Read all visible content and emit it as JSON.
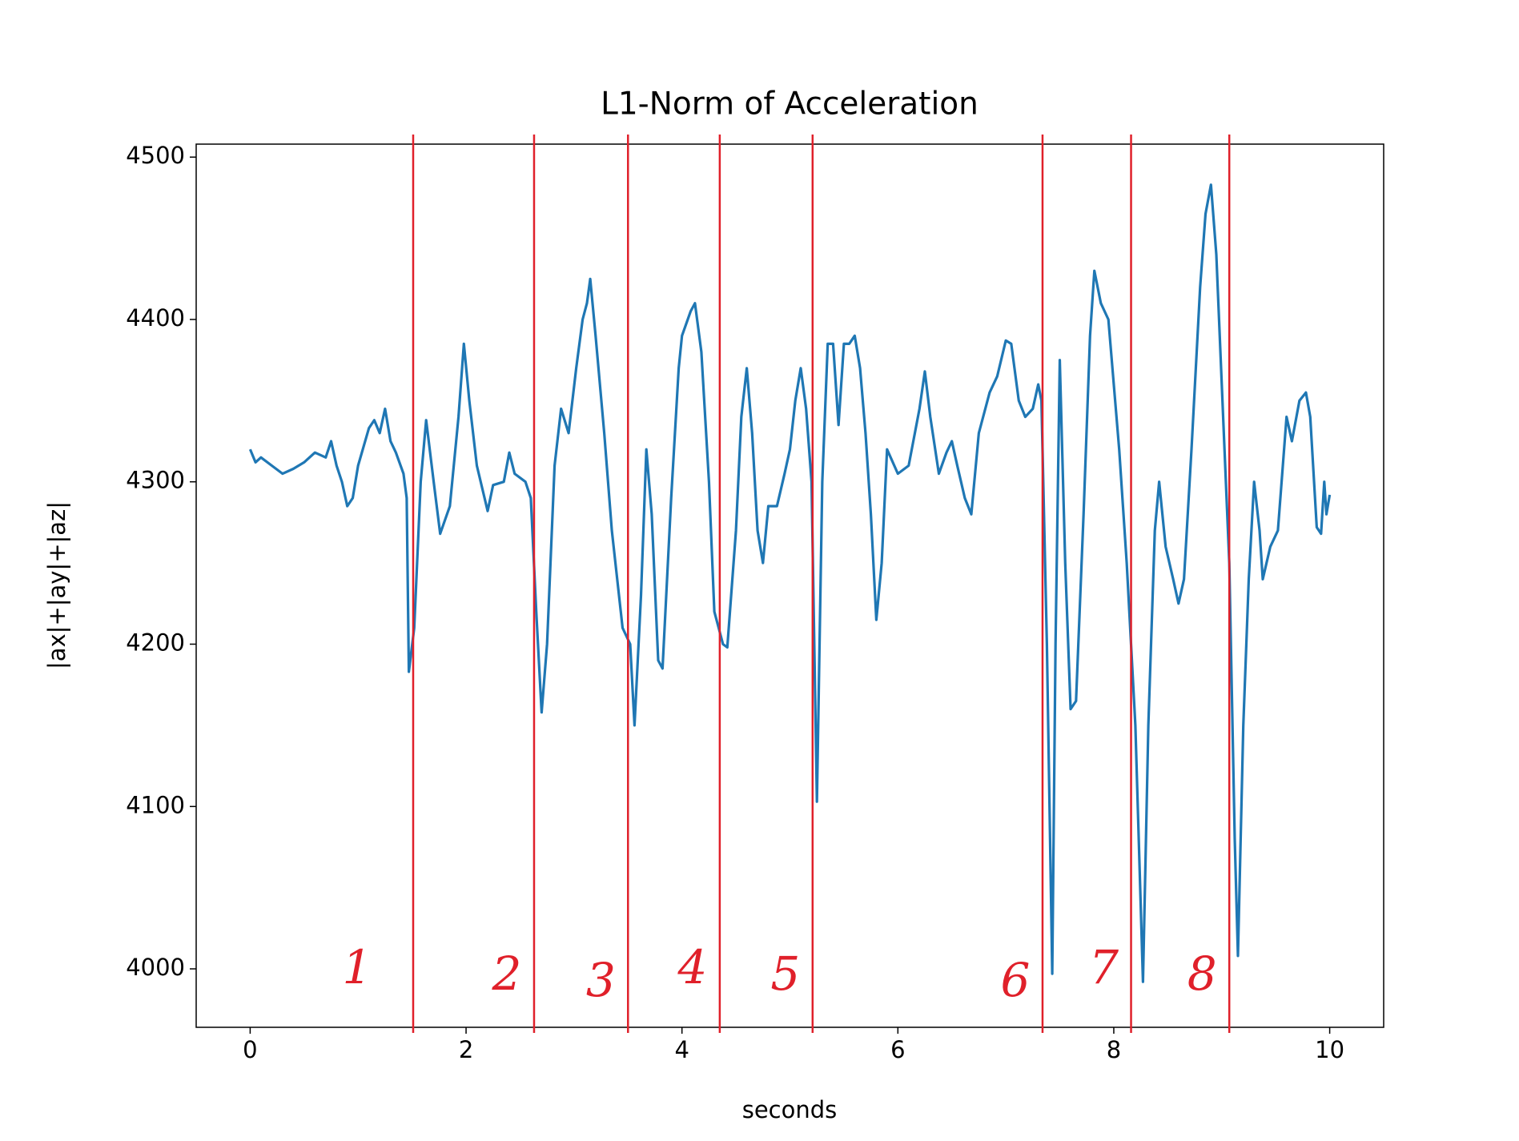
{
  "chart_data": {
    "type": "line",
    "title": "L1-Norm of Acceleration",
    "x_label": "seconds",
    "y_label": "|ax|+|ay|+|az|",
    "color": "#1f77b4",
    "x": [
      0.0,
      0.05,
      0.1,
      0.2,
      0.3,
      0.4,
      0.5,
      0.6,
      0.7,
      0.75,
      0.8,
      0.85,
      0.9,
      0.95,
      1.0,
      1.1,
      1.15,
      1.2,
      1.25,
      1.3,
      1.35,
      1.42,
      1.45,
      1.47,
      1.52,
      1.58,
      1.63,
      1.7,
      1.76,
      1.85,
      1.93,
      1.98,
      2.03,
      2.1,
      2.2,
      2.25,
      2.35,
      2.4,
      2.45,
      2.55,
      2.6,
      2.65,
      2.7,
      2.75,
      2.82,
      2.88,
      2.95,
      3.02,
      3.08,
      3.12,
      3.15,
      3.2,
      3.28,
      3.35,
      3.45,
      3.52,
      3.56,
      3.62,
      3.67,
      3.72,
      3.78,
      3.82,
      3.9,
      3.97,
      4.0,
      4.08,
      4.12,
      4.18,
      4.25,
      4.3,
      4.38,
      4.42,
      4.5,
      4.55,
      4.6,
      4.65,
      4.7,
      4.75,
      4.8,
      4.88,
      4.95,
      5.0,
      5.05,
      5.1,
      5.15,
      5.2,
      5.25,
      5.3,
      5.35,
      5.4,
      5.45,
      5.5,
      5.55,
      5.6,
      5.65,
      5.7,
      5.75,
      5.8,
      5.85,
      5.9,
      6.0,
      6.1,
      6.2,
      6.25,
      6.3,
      6.38,
      6.45,
      6.5,
      6.55,
      6.62,
      6.68,
      6.75,
      6.85,
      6.92,
      7.0,
      7.05,
      7.12,
      7.18,
      7.25,
      7.3,
      7.33,
      7.38,
      7.43,
      7.46,
      7.5,
      7.55,
      7.6,
      7.65,
      7.72,
      7.78,
      7.82,
      7.88,
      7.95,
      8.05,
      8.12,
      8.2,
      8.27,
      8.32,
      8.38,
      8.42,
      8.48,
      8.55,
      8.6,
      8.65,
      8.72,
      8.8,
      8.85,
      8.9,
      8.95,
      9.0,
      9.07,
      9.12,
      9.15,
      9.2,
      9.25,
      9.3,
      9.35,
      9.38,
      9.45,
      9.52,
      9.6,
      9.65,
      9.72,
      9.78,
      9.82,
      9.88,
      9.92,
      9.95,
      9.97,
      10.0
    ],
    "values": [
      4320,
      4312,
      4315,
      4310,
      4305,
      4308,
      4312,
      4318,
      4315,
      4325,
      4310,
      4300,
      4285,
      4290,
      4310,
      4333,
      4338,
      4330,
      4345,
      4325,
      4318,
      4305,
      4290,
      4183,
      4210,
      4300,
      4338,
      4300,
      4268,
      4285,
      4340,
      4385,
      4350,
      4310,
      4282,
      4298,
      4300,
      4318,
      4305,
      4300,
      4290,
      4220,
      4158,
      4200,
      4310,
      4345,
      4330,
      4370,
      4400,
      4410,
      4425,
      4390,
      4330,
      4270,
      4210,
      4200,
      4150,
      4230,
      4320,
      4280,
      4190,
      4185,
      4290,
      4370,
      4390,
      4405,
      4410,
      4380,
      4300,
      4220,
      4200,
      4198,
      4270,
      4340,
      4370,
      4330,
      4270,
      4250,
      4285,
      4285,
      4305,
      4320,
      4350,
      4370,
      4345,
      4300,
      4103,
      4300,
      4385,
      4385,
      4335,
      4385,
      4385,
      4390,
      4370,
      4330,
      4280,
      4215,
      4250,
      4320,
      4305,
      4310,
      4345,
      4368,
      4340,
      4305,
      4318,
      4325,
      4310,
      4290,
      4280,
      4330,
      4355,
      4365,
      4387,
      4385,
      4350,
      4340,
      4345,
      4360,
      4350,
      4200,
      3997,
      4200,
      4375,
      4250,
      4160,
      4165,
      4280,
      4390,
      4430,
      4410,
      4400,
      4320,
      4250,
      4150,
      3992,
      4150,
      4270,
      4300,
      4260,
      4240,
      4225,
      4240,
      4320,
      4420,
      4465,
      4483,
      4440,
      4360,
      4250,
      4080,
      4008,
      4150,
      4240,
      4300,
      4270,
      4240,
      4260,
      4270,
      4340,
      4325,
      4350,
      4355,
      4340,
      4272,
      4268,
      4300,
      4280,
      4292
    ],
    "xlim": [
      -0.5,
      10.5
    ],
    "ylim": [
      3964,
      4508
    ],
    "xticks": [
      0,
      2,
      4,
      6,
      8,
      10
    ],
    "yticks": [
      4000,
      4100,
      4200,
      4300,
      4400,
      4500
    ],
    "markers": [
      1.51,
      2.63,
      3.5,
      4.35,
      5.21,
      7.34,
      8.16,
      9.07
    ],
    "marker_color": "#e0202a",
    "annotations": [
      "1",
      "2",
      "3",
      "4",
      "5",
      "6",
      "7",
      "8"
    ]
  }
}
